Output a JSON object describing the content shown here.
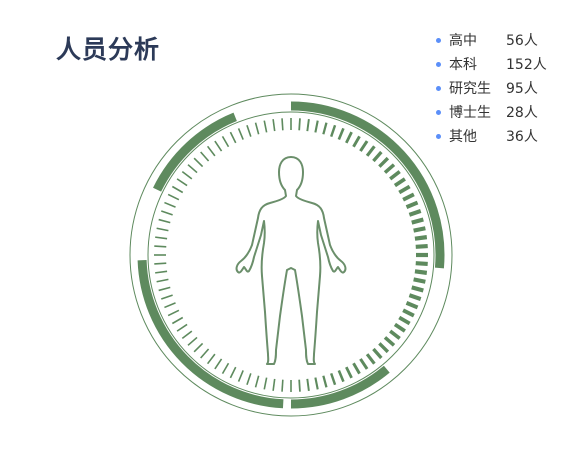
{
  "panel": {
    "title": "人员分析"
  },
  "legend": {
    "items": [
      {
        "name": "高中",
        "value": "56人"
      },
      {
        "name": "本科",
        "value": "152人"
      },
      {
        "name": "研究生",
        "value": "95人"
      },
      {
        "name": "博士生",
        "value": "28人"
      },
      {
        "name": "其他",
        "value": "36人"
      }
    ]
  },
  "colors": {
    "title": "#2c3a58",
    "legend_dot": "#5b8ff9",
    "ring": "#5e8a5e",
    "ring_light": "#7fa27f"
  },
  "icons": {
    "figure": "human-body-icon"
  }
}
